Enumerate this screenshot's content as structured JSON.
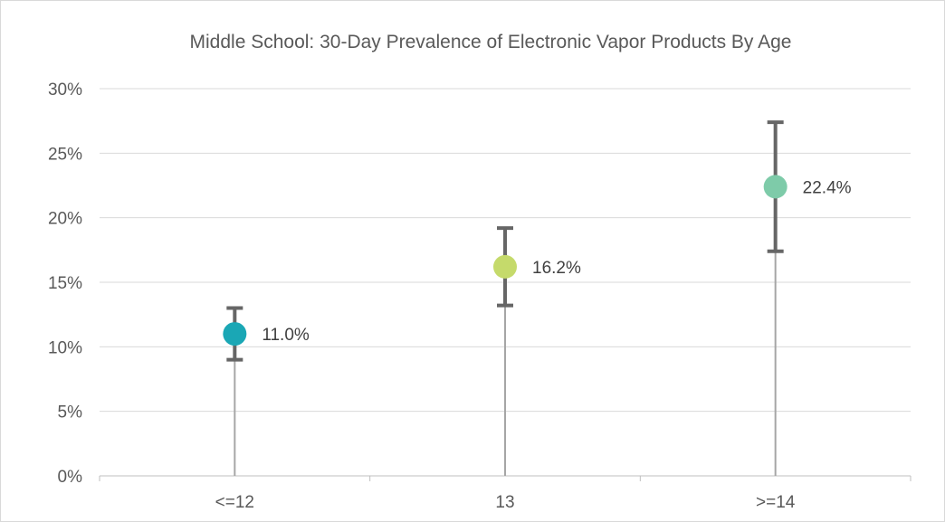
{
  "chart_data": {
    "type": "scatter",
    "title": "Middle School: 30-Day Prevalence of Electronic Vapor Products By Age",
    "xlabel": "",
    "ylabel": "",
    "categories": [
      "<=12",
      "13",
      ">=14"
    ],
    "values": [
      11.0,
      16.2,
      22.4
    ],
    "error_low": [
      9.0,
      13.2,
      17.4
    ],
    "error_high": [
      13.0,
      19.2,
      27.4
    ],
    "data_labels": [
      "11.0%",
      "16.2%",
      "22.4%"
    ],
    "point_colors": [
      "#1aa7b5",
      "#c5da6b",
      "#7ecba9"
    ],
    "ylim": [
      0,
      30
    ],
    "yticks": [
      0,
      5,
      10,
      15,
      20,
      25,
      30
    ],
    "ytick_labels": [
      "0%",
      "5%",
      "10%",
      "15%",
      "20%",
      "25%",
      "30%"
    ],
    "grid": true,
    "legend": "none",
    "colors": {
      "gridline": "#d9d9d9",
      "axis": "#bfbfbf",
      "error_bar": "#666666",
      "drop_line": "#a6a6a6",
      "text": "#595959"
    }
  }
}
